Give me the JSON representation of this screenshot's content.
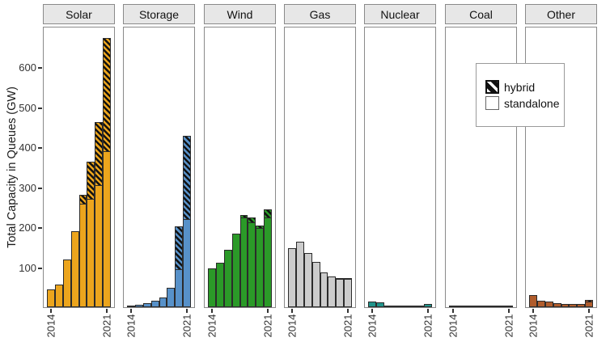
{
  "chart_data": {
    "type": "bar",
    "title": "",
    "ylabel": "Total Capacity in Queues (GW)",
    "xlabel": "",
    "stacked": true,
    "faceted": true,
    "years": [
      2014,
      2015,
      2016,
      2017,
      2018,
      2019,
      2020,
      2021
    ],
    "x_tick_labels_shown": [
      "2014",
      "2021"
    ],
    "y_ticks": [
      100,
      200,
      300,
      400,
      500,
      600
    ],
    "ylim": [
      0,
      700
    ],
    "grid": false,
    "legend": {
      "position": "inside-upper-right",
      "entries": [
        {
          "label": "hybrid",
          "style": "hatched"
        },
        {
          "label": "standalone",
          "style": "solid-white"
        }
      ]
    },
    "facets": [
      {
        "label": "Solar",
        "color": "#ECA51D",
        "series": [
          {
            "name": "standalone",
            "values": [
              44,
              57,
              120,
              190,
              258,
              270,
              305,
              390
            ]
          },
          {
            "name": "hybrid",
            "values": [
              0,
              0,
              0,
              0,
              25,
              95,
              160,
              285
            ]
          }
        ]
      },
      {
        "label": "Storage",
        "color": "#5791C9",
        "series": [
          {
            "name": "standalone",
            "values": [
              2,
              7,
              11,
              16,
              25,
              48,
              95,
              220
            ]
          },
          {
            "name": "hybrid",
            "values": [
              0,
              0,
              0,
              0,
              0,
              0,
              110,
              210
            ]
          }
        ]
      },
      {
        "label": "Wind",
        "color": "#2B9A28",
        "series": [
          {
            "name": "standalone",
            "values": [
              97,
              112,
              144,
              183,
              225,
              212,
              198,
              225
            ]
          },
          {
            "name": "hybrid",
            "values": [
              0,
              0,
              0,
              0,
              8,
              15,
              8,
              22
            ]
          }
        ]
      },
      {
        "label": "Gas",
        "color": "#CCCCCC",
        "series": [
          {
            "name": "standalone",
            "values": [
              147,
              164,
              135,
              114,
              87,
              76,
              70,
              71
            ]
          },
          {
            "name": "hybrid",
            "values": [
              0,
              0,
              0,
              0,
              0,
              0,
              2,
              3
            ]
          }
        ]
      },
      {
        "label": "Nuclear",
        "color": "#20948B",
        "series": [
          {
            "name": "standalone",
            "values": [
              14,
              13,
              5,
              2,
              1,
              2,
              4,
              8
            ]
          },
          {
            "name": "hybrid",
            "values": [
              0,
              0,
              0,
              0,
              0,
              0,
              0,
              0
            ]
          }
        ]
      },
      {
        "label": "Coal",
        "color": "#4D4D4D",
        "series": [
          {
            "name": "standalone",
            "values": [
              3,
              2,
              2,
              1,
              1,
              1,
              1,
              1
            ]
          },
          {
            "name": "hybrid",
            "values": [
              0,
              0,
              0,
              0,
              0,
              0,
              0,
              0
            ]
          }
        ]
      },
      {
        "label": "Other",
        "color": "#B05C2C",
        "series": [
          {
            "name": "standalone",
            "values": [
              30,
              17,
              14,
              10,
              9,
              8,
              9,
              14
            ]
          },
          {
            "name": "hybrid",
            "values": [
              0,
              0,
              0,
              0,
              0,
              0,
              0,
              6
            ]
          }
        ]
      }
    ],
    "colors": {
      "bar_outline": "#2b2b2b",
      "panel_border": "#8a8a8a",
      "strip_background": "#E7E7E7",
      "hatch": "#111111"
    }
  }
}
